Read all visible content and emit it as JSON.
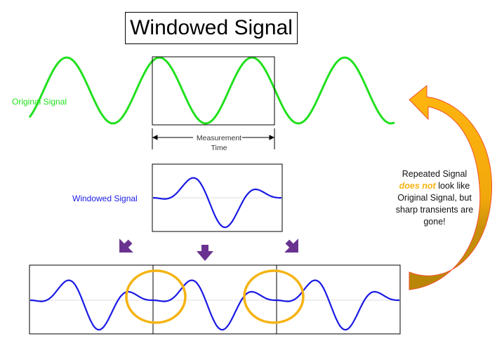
{
  "title": "Windowed Signal",
  "labels": {
    "original": "Original Signal",
    "windowed": "Windowed Signal",
    "measurement_line1": "Measurement",
    "measurement_line2": "Time"
  },
  "note": {
    "before": "Repeated Signal",
    "emphasis": "does not",
    "after": "look like Original Signal, but sharp transients are gone!"
  },
  "colors": {
    "original": "#22e01e",
    "windowed": "#1a1ae6",
    "highlight": "#f5b312",
    "arrows": "#6a3290"
  }
}
